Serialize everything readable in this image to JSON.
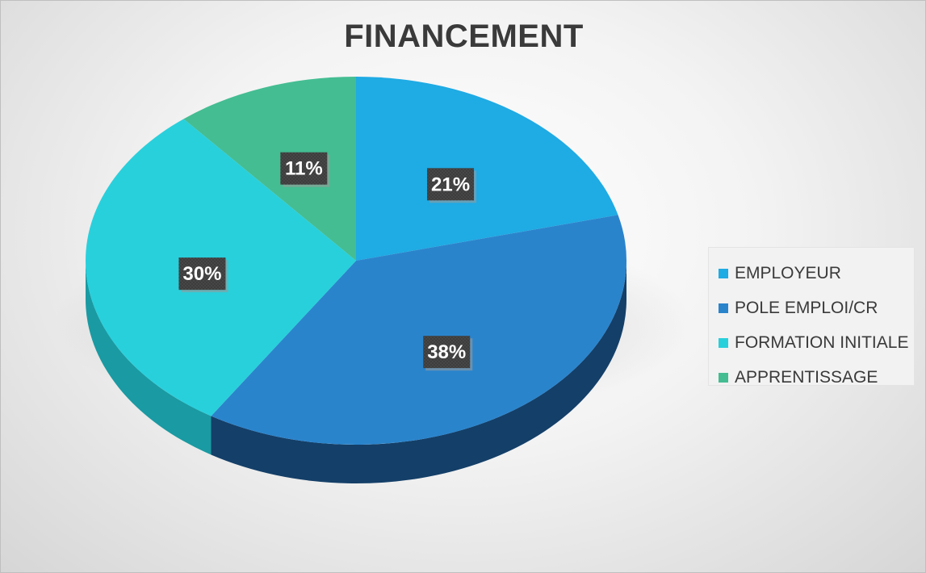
{
  "chart_data": {
    "type": "pie",
    "title": "FINANCEMENT",
    "categories": [
      "EMPLOYEUR",
      "POLE EMPLOI/CR",
      "FORMATION INITIALE",
      "APPRENTISSAGE"
    ],
    "values": [
      21,
      38,
      30,
      11
    ],
    "value_labels": [
      "21%",
      "38%",
      "30%",
      "11%"
    ],
    "colors": [
      "#1fabe4",
      "#2a84cc",
      "#28d0dc",
      "#44bd92"
    ],
    "side_colors": [
      "#0d5f85",
      "#143f68",
      "#1a9aa2",
      "#2a8a66"
    ],
    "legend_position": "right",
    "style": "3d"
  }
}
